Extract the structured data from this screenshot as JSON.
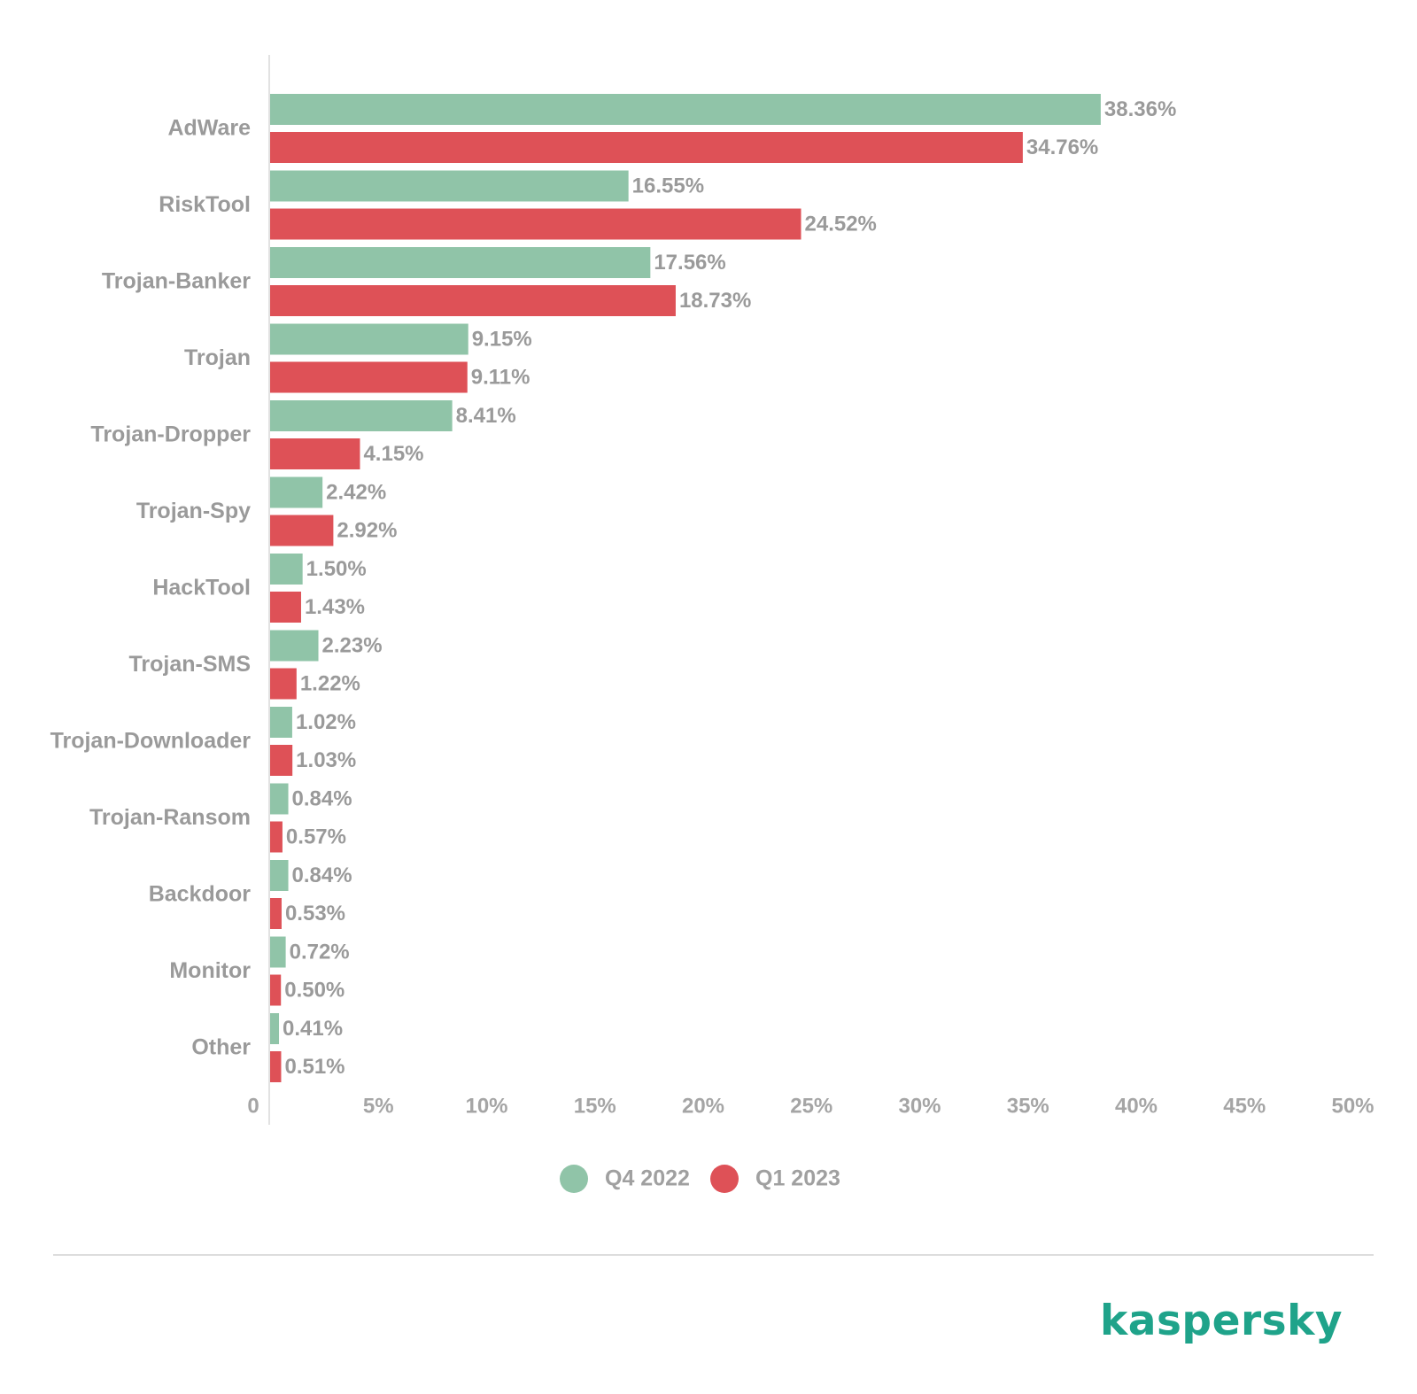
{
  "chart_data": {
    "type": "bar",
    "orientation": "horizontal",
    "categories": [
      "AdWare",
      "RiskTool",
      "Trojan-Banker",
      "Trojan",
      "Trojan-Dropper",
      "Trojan-Spy",
      "HackTool",
      "Trojan-SMS",
      "Trojan-Downloader",
      "Trojan-Ransom",
      "Backdoor",
      "Monitor",
      "Other"
    ],
    "series": [
      {
        "name": "Q4 2022",
        "color": "#90c4a8",
        "values": [
          38.36,
          16.55,
          17.56,
          9.15,
          8.41,
          2.42,
          1.5,
          2.23,
          1.02,
          0.84,
          0.84,
          0.72,
          0.41
        ],
        "labels": [
          "38.36%",
          "16.55%",
          "17.56%",
          "9.15%",
          "8.41%",
          "2.42%",
          "1.50%",
          "2.23%",
          "1.02%",
          "0.84%",
          "0.84%",
          "0.72%",
          "0.41%"
        ]
      },
      {
        "name": "Q1 2023",
        "color": "#de5157",
        "values": [
          34.76,
          24.52,
          18.73,
          9.11,
          4.15,
          2.92,
          1.43,
          1.22,
          1.03,
          0.57,
          0.53,
          0.5,
          0.51
        ],
        "labels": [
          "34.76%",
          "24.52%",
          "18.73%",
          "9.11%",
          "4.15%",
          "2.92%",
          "1.43%",
          "1.22%",
          "1.03%",
          "0.57%",
          "0.53%",
          "0.50%",
          "0.51%"
        ]
      }
    ],
    "xlim": [
      0,
      50
    ],
    "xticks": [
      0,
      5,
      10,
      15,
      20,
      25,
      30,
      35,
      40,
      45,
      50
    ],
    "xtick_labels": [
      "0",
      "5%",
      "10%",
      "15%",
      "20%",
      "25%",
      "30%",
      "35%",
      "40%",
      "45%",
      "50%"
    ],
    "legend_position": "bottom-center",
    "grid": false
  },
  "brand": {
    "name": "kaspersky"
  }
}
